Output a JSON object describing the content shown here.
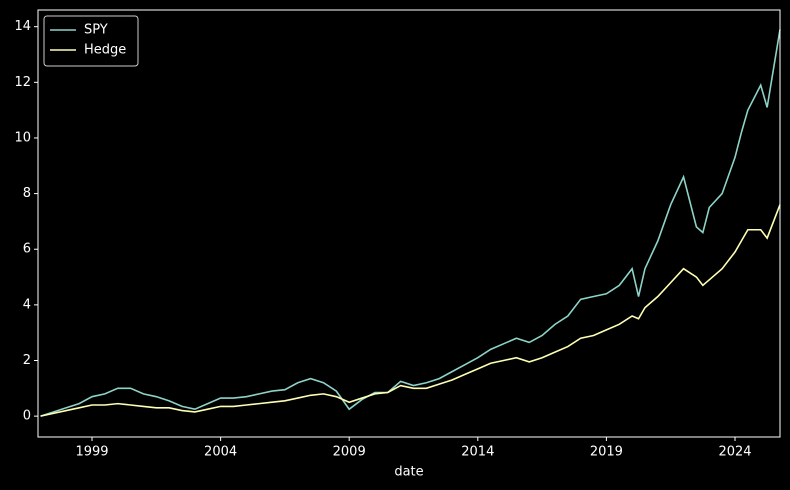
{
  "chart_data": {
    "type": "line",
    "x": [
      1997,
      1997.5,
      1998,
      1998.5,
      1999,
      1999.5,
      2000,
      2000.5,
      2001,
      2001.5,
      2002,
      2002.5,
      2003,
      2003.5,
      2004,
      2004.5,
      2005,
      2005.5,
      2006,
      2006.5,
      2007,
      2007.5,
      2008,
      2008.5,
      2009,
      2009.5,
      2010,
      2010.5,
      2011,
      2011.5,
      2012,
      2012.5,
      2013,
      2013.5,
      2014,
      2014.5,
      2015,
      2015.5,
      2016,
      2016.5,
      2017,
      2017.5,
      2018,
      2018.5,
      2019,
      2019.5,
      2020,
      2020.25,
      2020.5,
      2021,
      2021.5,
      2022,
      2022.5,
      2022.75,
      2023,
      2023.5,
      2024,
      2024.25,
      2024.5,
      2025,
      2025.25,
      2025.75
    ],
    "series": [
      {
        "name": "SPY",
        "color": "#8dd3c7",
        "values": [
          0,
          0.15,
          0.3,
          0.45,
          0.7,
          0.8,
          1.0,
          1.0,
          0.8,
          0.7,
          0.55,
          0.35,
          0.25,
          0.45,
          0.65,
          0.65,
          0.7,
          0.8,
          0.9,
          0.95,
          1.2,
          1.35,
          1.2,
          0.9,
          0.25,
          0.6,
          0.85,
          0.85,
          1.25,
          1.1,
          1.2,
          1.35,
          1.6,
          1.85,
          2.1,
          2.4,
          2.6,
          2.8,
          2.65,
          2.9,
          3.3,
          3.6,
          4.2,
          4.3,
          4.4,
          4.7,
          5.3,
          4.3,
          5.3,
          6.3,
          7.6,
          8.6,
          6.8,
          6.6,
          7.5,
          8.0,
          9.3,
          10.2,
          11.0,
          11.9,
          11.1,
          13.9
        ]
      },
      {
        "name": "Hedge",
        "color": "#feffb3",
        "values": [
          0,
          0.1,
          0.2,
          0.3,
          0.4,
          0.4,
          0.45,
          0.4,
          0.35,
          0.3,
          0.3,
          0.2,
          0.15,
          0.25,
          0.35,
          0.35,
          0.4,
          0.45,
          0.5,
          0.55,
          0.65,
          0.75,
          0.8,
          0.7,
          0.5,
          0.65,
          0.8,
          0.85,
          1.1,
          1.0,
          1.0,
          1.15,
          1.3,
          1.5,
          1.7,
          1.9,
          2.0,
          2.1,
          1.95,
          2.1,
          2.3,
          2.5,
          2.8,
          2.9,
          3.1,
          3.3,
          3.6,
          3.5,
          3.9,
          4.3,
          4.8,
          5.3,
          5.0,
          4.7,
          4.9,
          5.3,
          5.9,
          6.3,
          6.7,
          6.7,
          6.4,
          7.6
        ]
      }
    ],
    "x_label": "date",
    "xlim": [
      1996.9,
      2025.75
    ],
    "xticks": [
      1999,
      2004,
      2009,
      2014,
      2019,
      2024
    ],
    "ylim": [
      -0.75,
      14.6
    ],
    "yticks": [
      0,
      2,
      4,
      6,
      8,
      10,
      12,
      14
    ],
    "legend": "upper-left",
    "grid": false
  }
}
